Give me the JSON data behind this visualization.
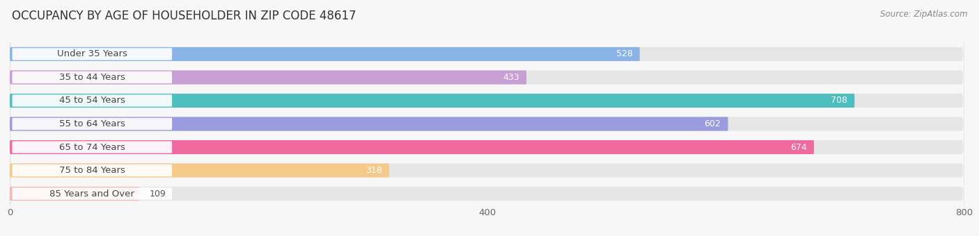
{
  "title": "OCCUPANCY BY AGE OF HOUSEHOLDER IN ZIP CODE 48617",
  "source": "Source: ZipAtlas.com",
  "categories": [
    "Under 35 Years",
    "35 to 44 Years",
    "45 to 54 Years",
    "55 to 64 Years",
    "65 to 74 Years",
    "75 to 84 Years",
    "85 Years and Over"
  ],
  "values": [
    528,
    433,
    708,
    602,
    674,
    318,
    109
  ],
  "bar_colors": [
    "#8ab4e8",
    "#c89fd4",
    "#4dbdbd",
    "#9b9ce0",
    "#f06aa0",
    "#f5c98a",
    "#f5b8b8"
  ],
  "xlim": [
    0,
    800
  ],
  "xticks": [
    0,
    400,
    800
  ],
  "background_color": "#f7f7f7",
  "bar_bg_color": "#e6e6e6",
  "title_fontsize": 12,
  "label_fontsize": 9.5,
  "value_fontsize": 9,
  "bar_height": 0.6
}
